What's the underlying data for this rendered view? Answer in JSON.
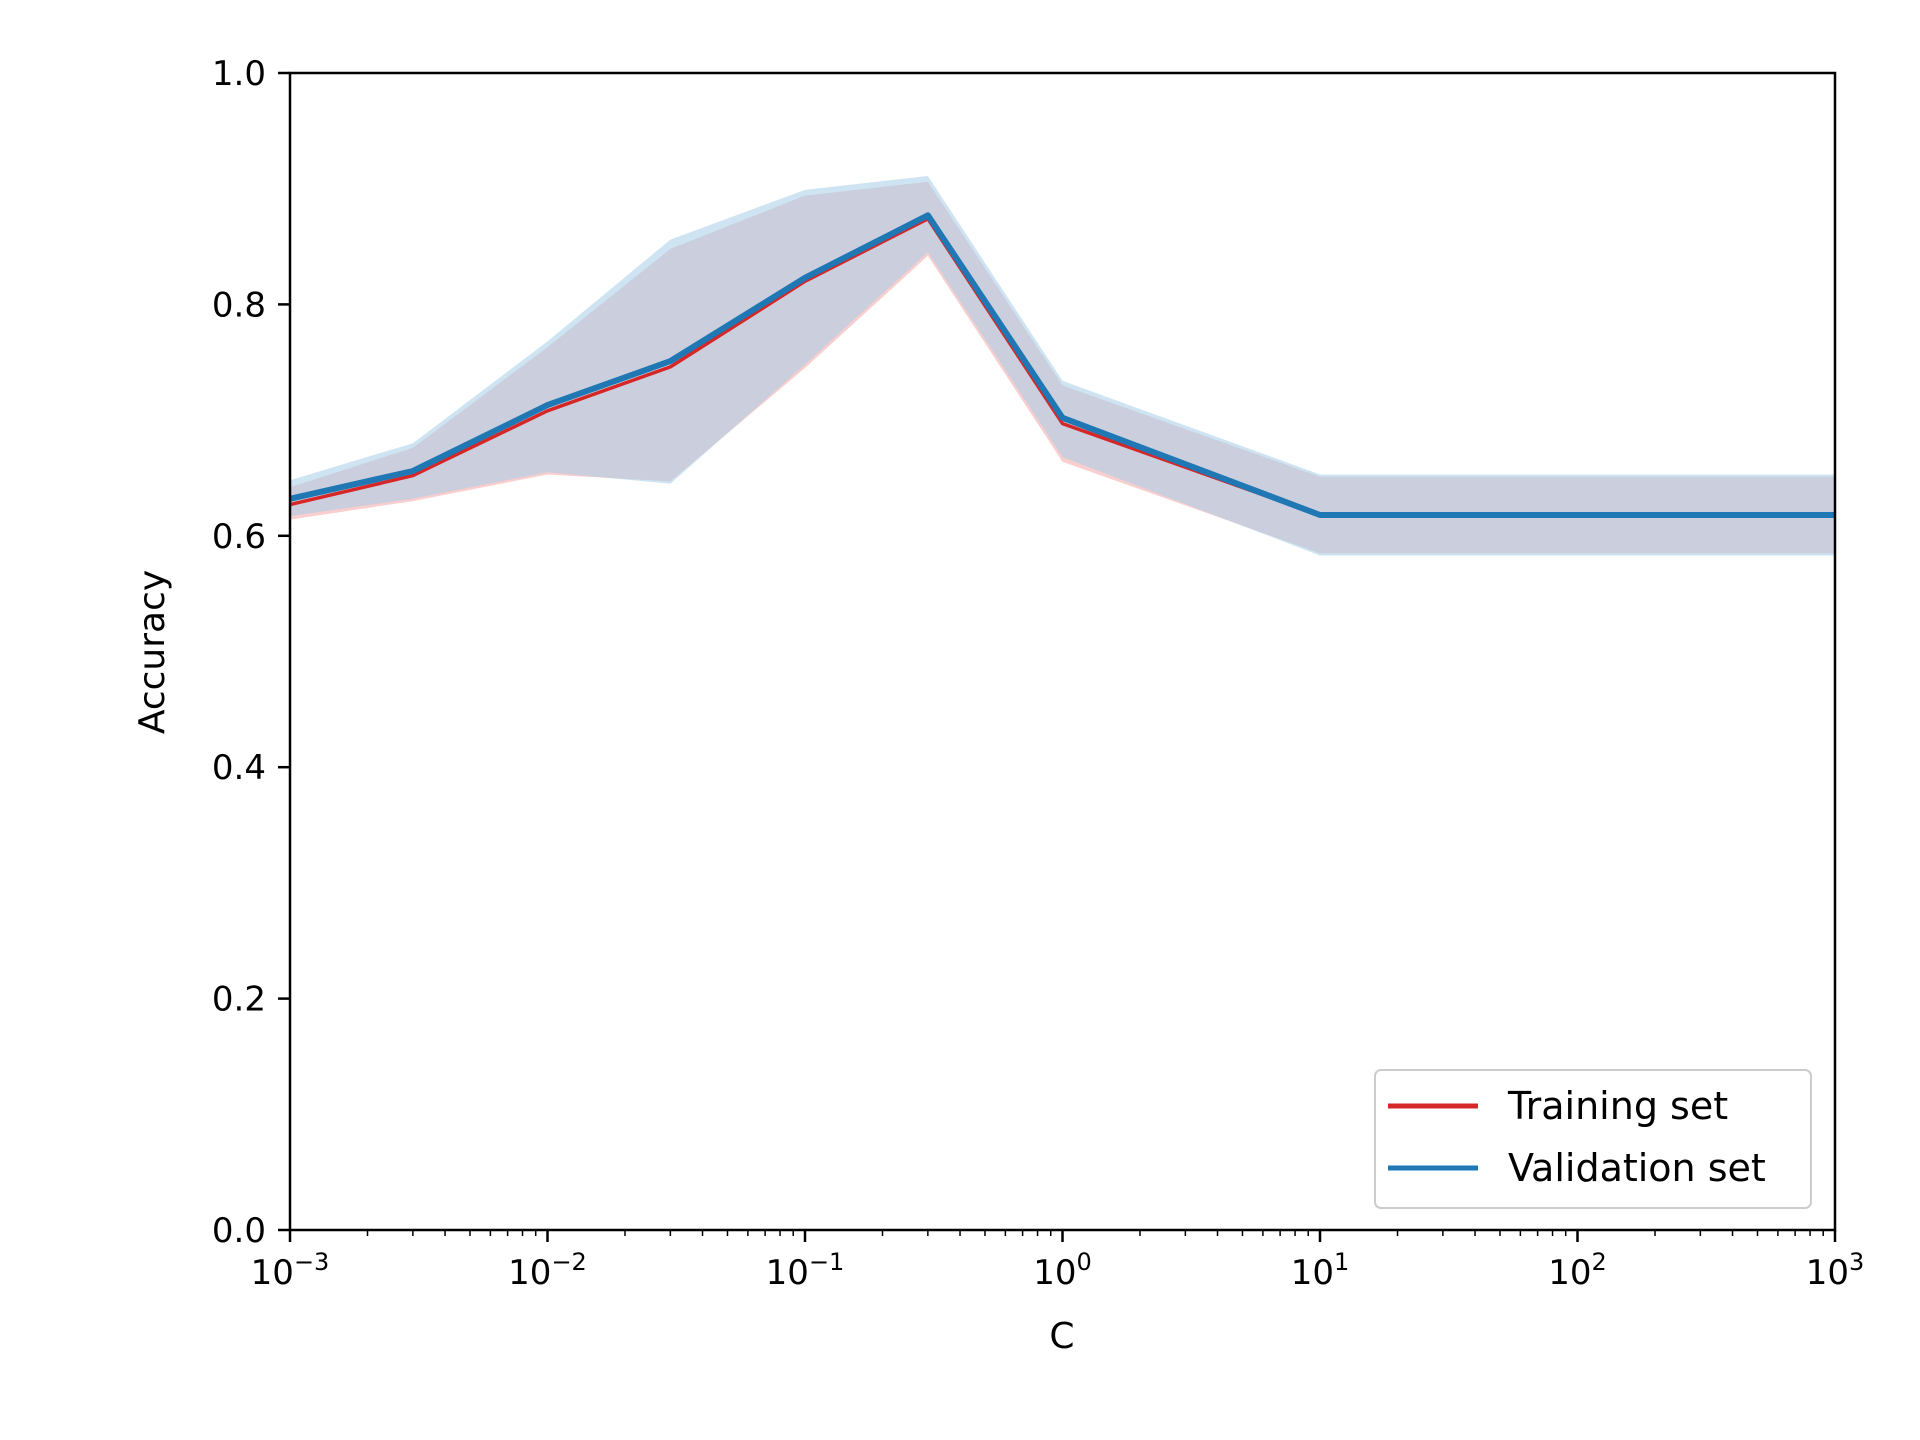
{
  "chart_data": {
    "type": "line",
    "title": "",
    "xlabel": "C",
    "ylabel": "Accuracy",
    "xscale": "log",
    "xlim": [
      0.001,
      1000
    ],
    "ylim": [
      0.0,
      1.0
    ],
    "grid": false,
    "legend_position": "bottom-right",
    "x": [
      0.001,
      0.003,
      0.01,
      0.03,
      0.1,
      0.3,
      1,
      10,
      100,
      1000
    ],
    "y_ticks": [
      {
        "value": 0.0,
        "label": "0.0"
      },
      {
        "value": 0.2,
        "label": "0.2"
      },
      {
        "value": 0.4,
        "label": "0.4"
      },
      {
        "value": 0.6,
        "label": "0.6"
      },
      {
        "value": 0.8,
        "label": "0.8"
      },
      {
        "value": 1.0,
        "label": "1.0"
      }
    ],
    "x_ticks": [
      {
        "value": 0.001,
        "base": "10",
        "exp": "−3"
      },
      {
        "value": 0.01,
        "base": "10",
        "exp": "−2"
      },
      {
        "value": 0.1,
        "base": "10",
        "exp": "−1"
      },
      {
        "value": 1,
        "base": "10",
        "exp": "0"
      },
      {
        "value": 10,
        "base": "10",
        "exp": "1"
      },
      {
        "value": 100,
        "base": "10",
        "exp": "2"
      },
      {
        "value": 1000,
        "base": "10",
        "exp": "3"
      }
    ],
    "series": [
      {
        "name": "Training set",
        "color": "#d62728",
        "band_color": "#f4a6a6",
        "values": [
          0.627,
          0.652,
          0.708,
          0.746,
          0.82,
          0.874,
          0.697,
          0.618,
          0.618,
          0.618
        ],
        "lower": [
          0.614,
          0.63,
          0.653,
          0.647,
          0.745,
          0.842,
          0.664,
          0.585,
          0.585,
          0.585
        ],
        "upper": [
          0.642,
          0.676,
          0.763,
          0.848,
          0.894,
          0.906,
          0.73,
          0.651,
          0.651,
          0.651
        ]
      },
      {
        "name": "Validation set",
        "color": "#1f77b4",
        "band_color": "#a6cee8",
        "values": [
          0.632,
          0.656,
          0.713,
          0.751,
          0.823,
          0.877,
          0.702,
          0.618,
          0.618,
          0.618
        ],
        "lower": [
          0.617,
          0.632,
          0.655,
          0.645,
          0.748,
          0.845,
          0.668,
          0.583,
          0.583,
          0.583
        ],
        "upper": [
          0.648,
          0.68,
          0.768,
          0.856,
          0.899,
          0.911,
          0.734,
          0.653,
          0.653,
          0.653
        ]
      }
    ]
  }
}
